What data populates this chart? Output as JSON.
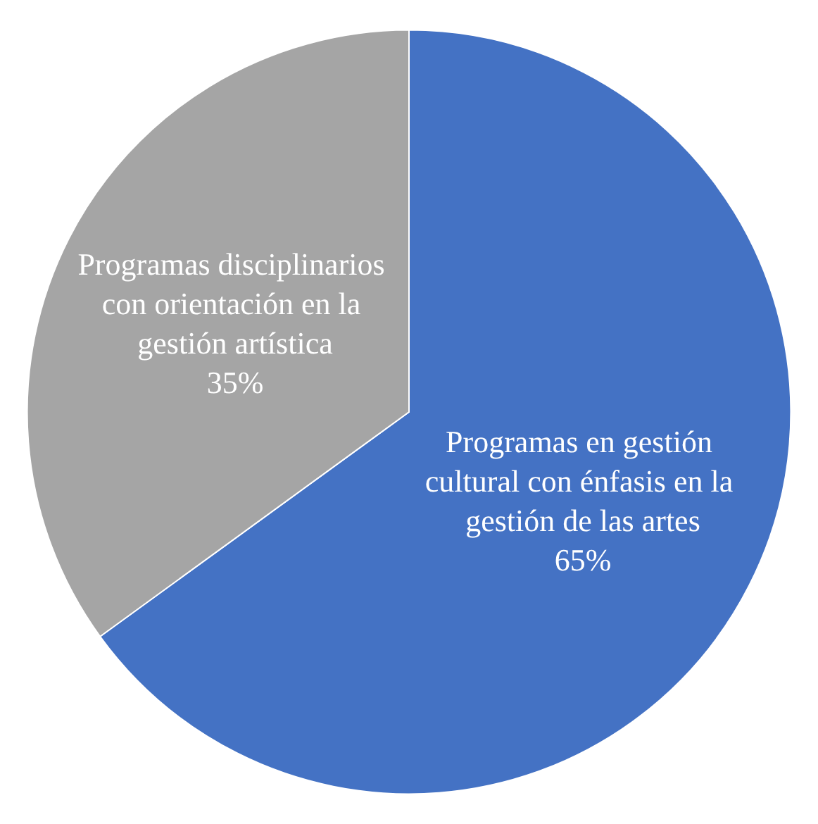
{
  "chart_data": {
    "type": "pie",
    "categories": [
      "Programas en gestión cultural con énfasis en la gestión de las artes",
      "Programas disciplinarios con orientación en la gestión artística"
    ],
    "values": [
      65,
      35
    ],
    "colors": [
      "#4472c4",
      "#a5a5a5"
    ],
    "value_labels": [
      "65%",
      "35%"
    ],
    "legend": false
  }
}
